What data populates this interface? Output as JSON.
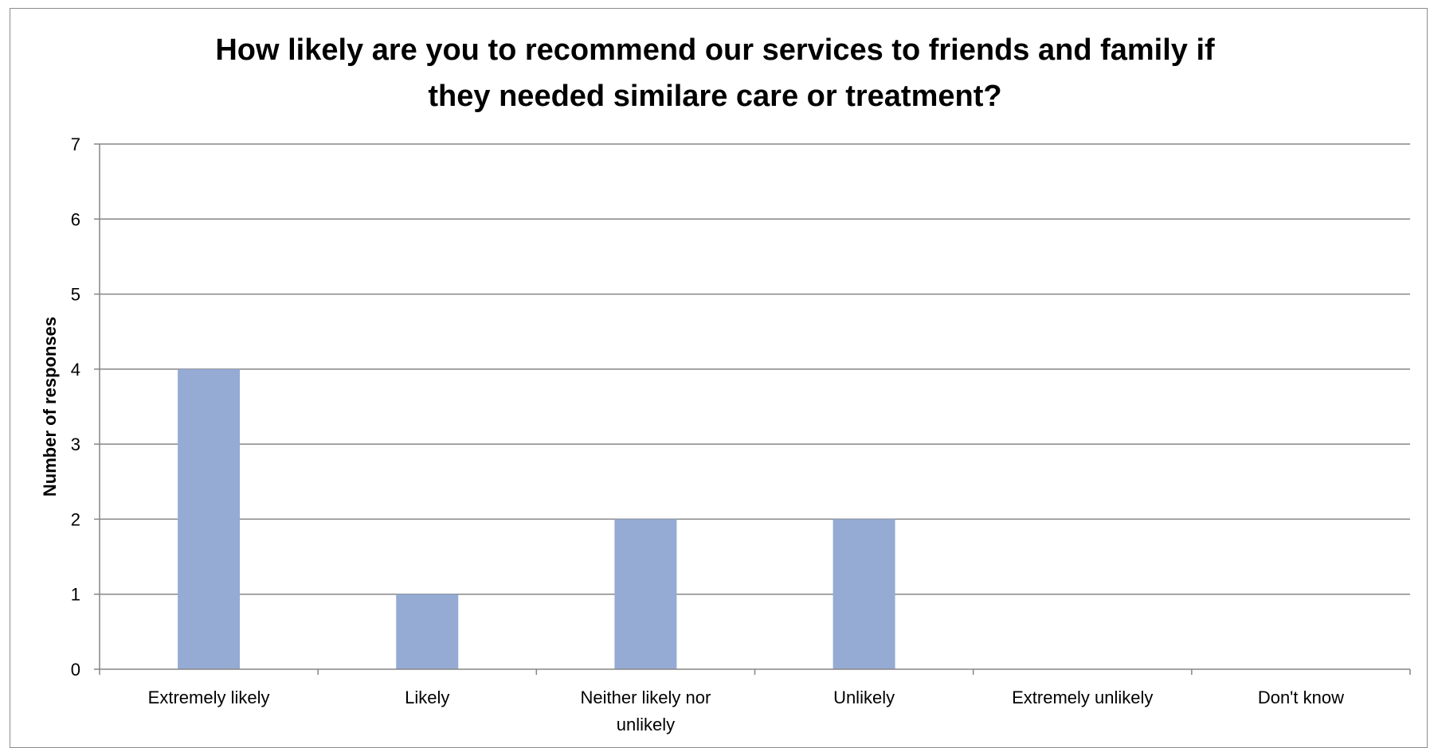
{
  "chart_data": {
    "type": "bar",
    "title_lines": [
      "How likely are you to recommend our services to friends and family if",
      "they needed similare care or treatment?"
    ],
    "xlabel": "",
    "ylabel": "Number of responses",
    "categories": [
      [
        "Extremely likely"
      ],
      [
        "Likely"
      ],
      [
        "Neither likely nor",
        "unlikely"
      ],
      [
        "Unlikely"
      ],
      [
        "Extremely unlikely"
      ],
      [
        "Don't know"
      ]
    ],
    "values": [
      4,
      1,
      2,
      2,
      0,
      0
    ],
    "ylim": [
      0,
      7
    ],
    "yticks": [
      0,
      1,
      2,
      3,
      4,
      5,
      6,
      7
    ],
    "grid": true,
    "legend": "none",
    "bar_color": "#95abd4",
    "grid_color": "#868686"
  }
}
